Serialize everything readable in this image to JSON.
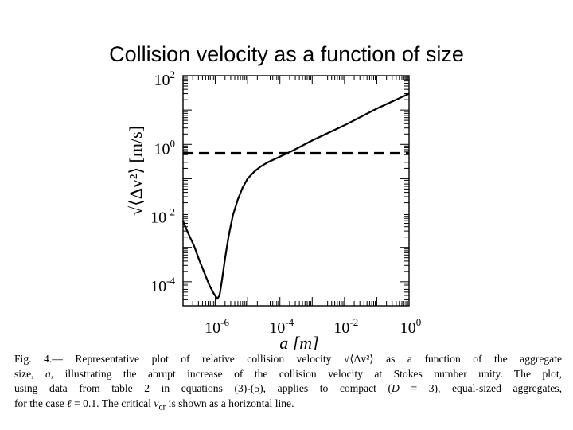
{
  "slide": {
    "title": "Collision velocity as a function of size"
  },
  "chart_data": {
    "type": "line",
    "title": "",
    "xlabel": "a [m]",
    "ylabel": "√⟨Δv²⟩ [m/s]",
    "x_scale": "log",
    "y_scale": "log",
    "xlim": [
      1e-07,
      1.0
    ],
    "ylim": [
      2e-05,
      100.0
    ],
    "x_ticks": [
      {
        "base": "10",
        "exp": "-6",
        "value": 1e-06
      },
      {
        "base": "10",
        "exp": "-4",
        "value": 0.0001
      },
      {
        "base": "10",
        "exp": "-2",
        "value": 0.01
      },
      {
        "base": "10",
        "exp": "0",
        "value": 1.0
      }
    ],
    "y_ticks": [
      {
        "base": "10",
        "exp": "2",
        "value": 100.0
      },
      {
        "base": "10",
        "exp": "0",
        "value": 1.0
      },
      {
        "base": "10",
        "exp": "-2",
        "value": 0.01
      },
      {
        "base": "10",
        "exp": "-4",
        "value": 0.0001
      }
    ],
    "grid": false,
    "legend": "none",
    "series": [
      {
        "style": "solid",
        "color": "#000000",
        "points": [
          [
            1e-07,
            0.0058
          ],
          [
            1.5e-07,
            0.0024
          ],
          [
            2.2e-07,
            0.0011
          ],
          [
            3.2e-07,
            0.00042
          ],
          [
            4.5e-07,
            0.00019
          ],
          [
            6.5e-07,
            8e-05
          ],
          [
            9e-07,
            4.5e-05
          ],
          [
            1.15e-06,
            3.2e-05
          ],
          [
            1.35e-06,
            4e-05
          ],
          [
            1.6e-06,
            0.00011
          ],
          [
            2e-06,
            0.00048
          ],
          [
            2.6e-06,
            0.0022
          ],
          [
            3.5e-06,
            0.0085
          ],
          [
            5e-06,
            0.025
          ],
          [
            7e-06,
            0.055
          ],
          [
            1e-05,
            0.1
          ],
          [
            1.6e-05,
            0.16
          ],
          [
            2.6e-05,
            0.23
          ],
          [
            4.5e-05,
            0.31
          ],
          [
            0.0001,
            0.44
          ],
          [
            0.00025,
            0.66
          ],
          [
            0.001,
            1.3
          ],
          [
            0.01,
            3.6
          ],
          [
            0.1,
            11
          ],
          [
            1,
            30
          ]
        ]
      },
      {
        "style": "dashed",
        "color": "#000000",
        "points": [
          [
            1e-07,
            0.55
          ],
          [
            1,
            0.55
          ]
        ]
      }
    ]
  },
  "caption": {
    "lines": [
      [
        "Fig.  4.— Representative plot of relative collision velocity ",
        "√⟨Δv²⟩",
        " as a function of the aggregate"
      ],
      [
        "size, ",
        "a",
        ", illustrating the abrupt increase of the collision velocity at Stokes number unity.  The plot,"
      ],
      [
        "using data from table 2 in equations (3)-(5), applies to compact (",
        "D",
        " = 3), equal-sized aggregates,"
      ],
      [
        "for the case ",
        "ℓ",
        " = 0.1.  The critical ",
        "v",
        "cr",
        " is shown as a horizontal line."
      ]
    ]
  }
}
